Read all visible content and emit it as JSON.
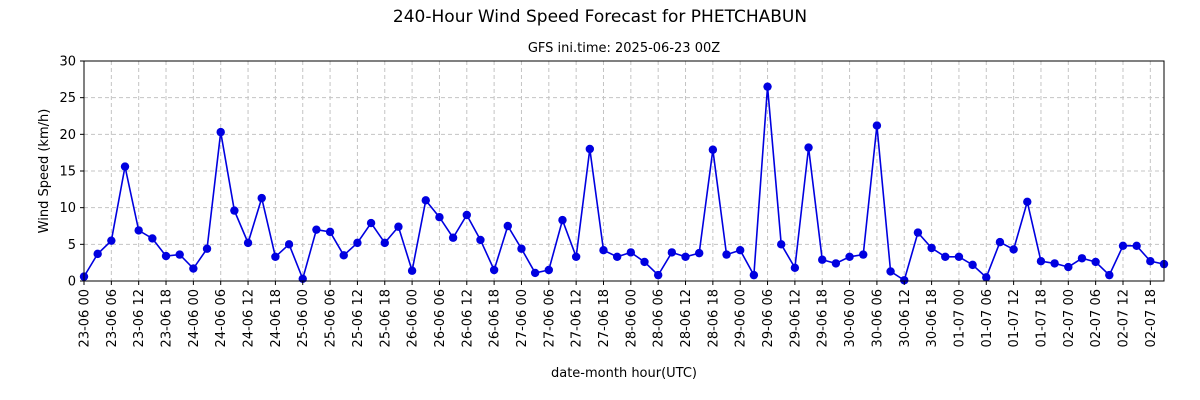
{
  "figure_title": "240-Hour Wind Speed Forecast for PHETCHABUN",
  "chart_data": {
    "type": "line",
    "title": "GFS ini.time: 2025-06-23 00Z",
    "xlabel": "date-month hour(UTC)",
    "ylabel": "Wind Speed (km/h)",
    "ylim": [
      0,
      30
    ],
    "yticks": [
      0,
      5,
      10,
      15,
      20,
      25,
      30
    ],
    "grid": true,
    "x_step_hours": 3,
    "x_tick_every": 2,
    "x_ticks": [
      "23-06 00",
      "23-06 06",
      "23-06 12",
      "23-06 18",
      "24-06 00",
      "24-06 06",
      "24-06 12",
      "24-06 18",
      "25-06 00",
      "25-06 06",
      "25-06 12",
      "25-06 18",
      "26-06 00",
      "26-06 06",
      "26-06 12",
      "26-06 18",
      "27-06 00",
      "27-06 06",
      "27-06 12",
      "27-06 18",
      "28-06 00",
      "28-06 06",
      "28-06 12",
      "28-06 18",
      "29-06 00",
      "29-06 06",
      "29-06 12",
      "29-06 18",
      "30-06 00",
      "30-06 06",
      "30-06 12",
      "30-06 18",
      "01-07 00",
      "01-07 06",
      "01-07 12",
      "01-07 18",
      "02-07 00",
      "02-07 06",
      "02-07 12",
      "02-07 18"
    ],
    "colors": {
      "line": "#0000e0",
      "marker": "#0000e0"
    },
    "series": [
      {
        "values": [
          0.6,
          3.7,
          5.5,
          15.6,
          6.9,
          5.8,
          3.4,
          3.6,
          1.7,
          4.4,
          20.3,
          9.6,
          5.2,
          11.3,
          3.3,
          5.0,
          0.3,
          7.0,
          6.7,
          3.5,
          5.2,
          7.9,
          5.2,
          7.4,
          1.4,
          11.0,
          8.7,
          5.9,
          9.0,
          5.6,
          1.5,
          7.5,
          4.4,
          1.1,
          1.5,
          8.3,
          3.3,
          18.0,
          4.2,
          3.3,
          3.9,
          2.6,
          0.8,
          3.9,
          3.3,
          3.8,
          17.9,
          3.6,
          4.2,
          0.8,
          26.5,
          5.0,
          1.8,
          18.2,
          2.9,
          2.4,
          3.3,
          3.6,
          21.2,
          1.3,
          0.1,
          6.6,
          4.5,
          3.3,
          3.3,
          2.2,
          0.5,
          5.3,
          4.3,
          10.8,
          2.7,
          2.4,
          1.9,
          3.1,
          2.6,
          0.8,
          4.8,
          4.8,
          2.7,
          2.3
        ]
      }
    ]
  }
}
